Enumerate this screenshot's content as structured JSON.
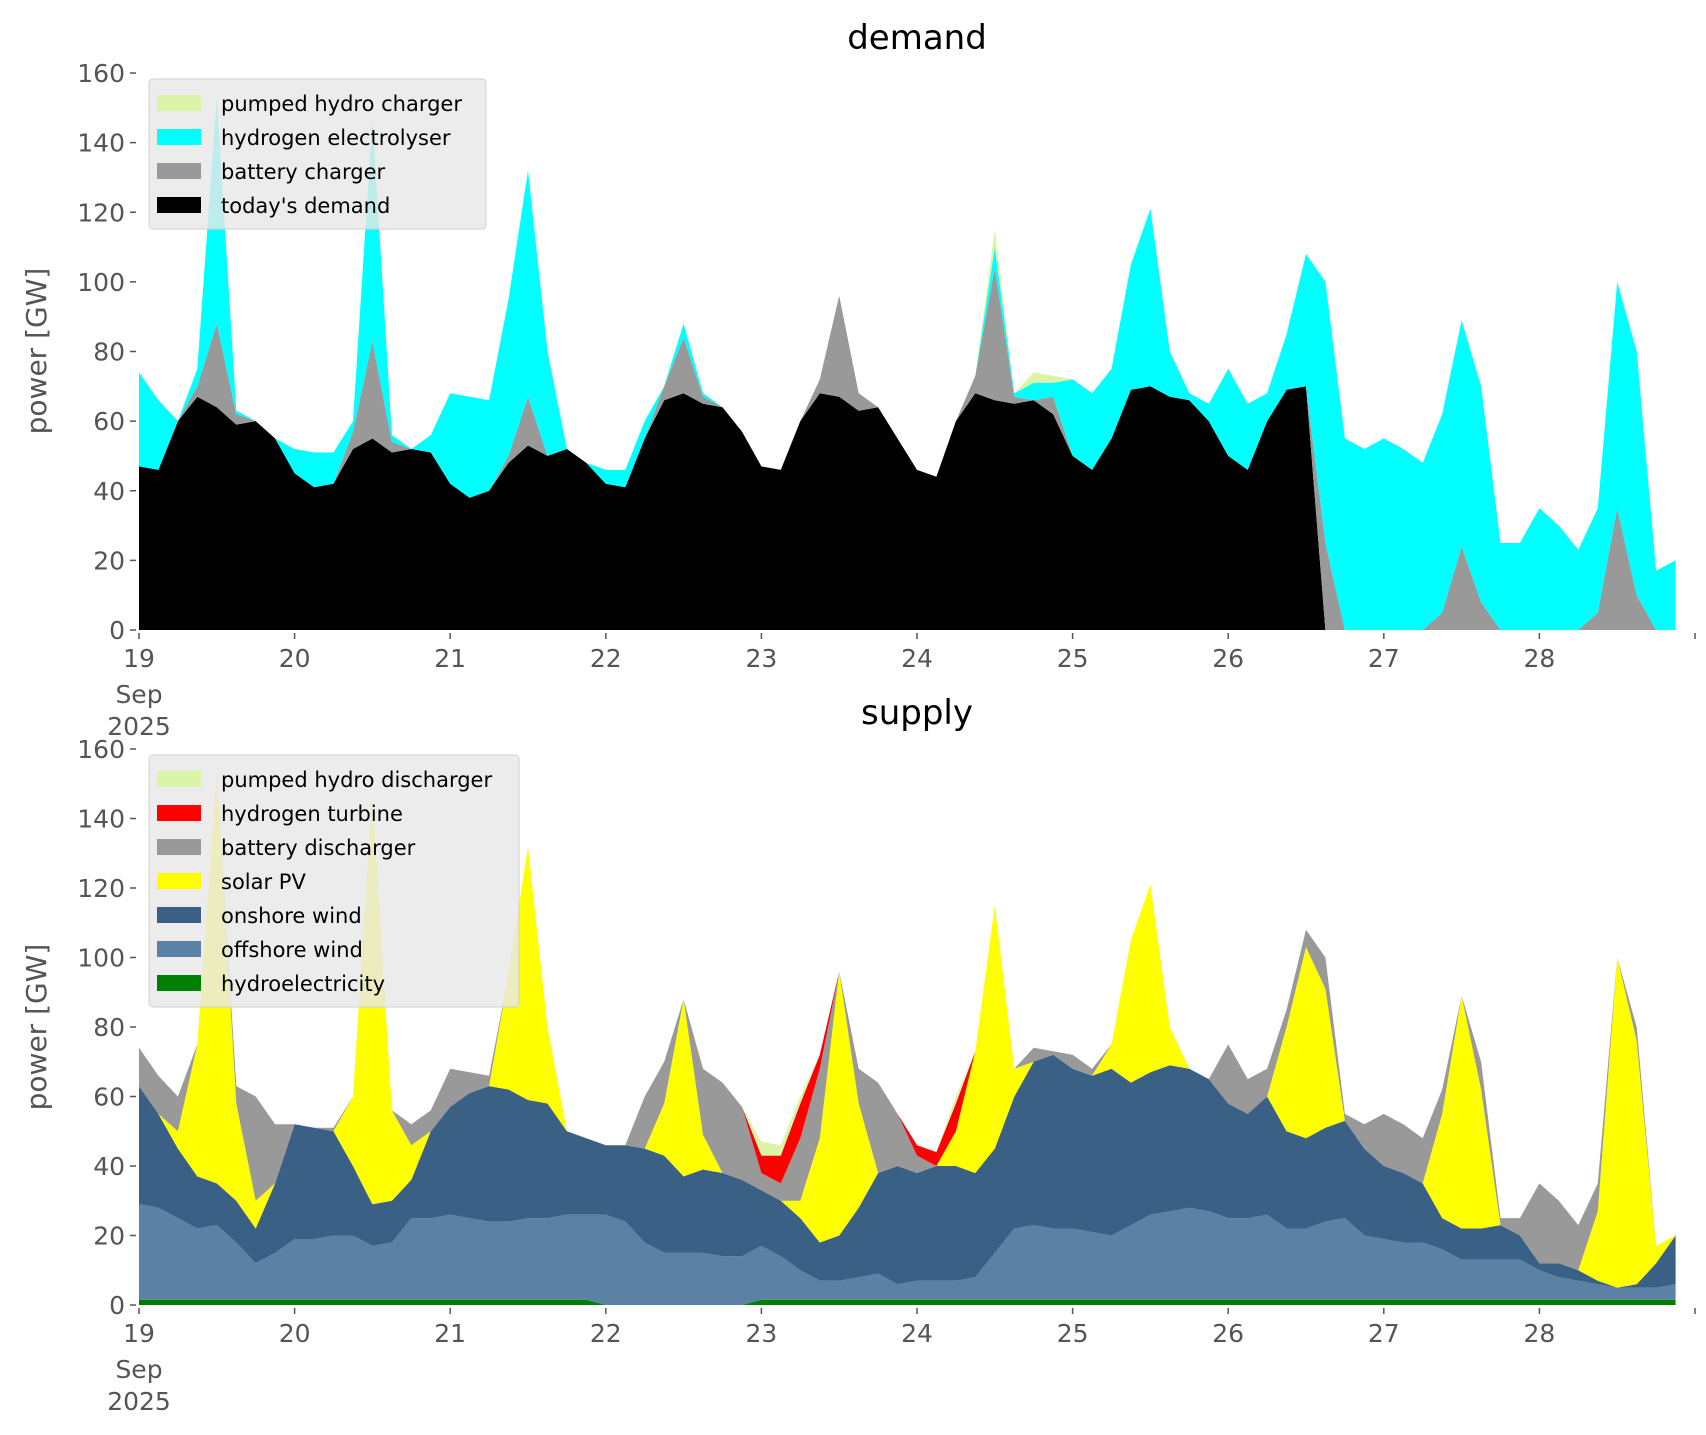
{
  "chart_data": [
    {
      "type": "area",
      "stacked": true,
      "title": "demand",
      "xlabel": "",
      "ylabel": "power [GW]",
      "ylim": [
        0,
        160
      ],
      "yticks": [
        0,
        20,
        40,
        60,
        80,
        100,
        120,
        140,
        160
      ],
      "x_start": "2025-09-19 00:00",
      "x_step_hours": 3,
      "xlim_days": [
        19,
        29
      ],
      "xtick_labels": [
        "19",
        "20",
        "21",
        "22",
        "23",
        "24",
        "25",
        "26",
        "27",
        "28"
      ],
      "xtick_first_sub": [
        "Sep",
        "2025"
      ],
      "legend_position": "top-left",
      "series": [
        {
          "name": "today's demand",
          "color": "#000000",
          "values": [
            47,
            46,
            60,
            67,
            64,
            59,
            60,
            55,
            45,
            41,
            42,
            52,
            55,
            51,
            52,
            51,
            42,
            38,
            40,
            48,
            53,
            50,
            52,
            48,
            42,
            41,
            55,
            66,
            68,
            65,
            64,
            57,
            47,
            46,
            60,
            68,
            67,
            63,
            64,
            55,
            46,
            44,
            60,
            68,
            66,
            65,
            66,
            62,
            50,
            46,
            55,
            69,
            70,
            67,
            66,
            60,
            50,
            46,
            60,
            69,
            70,
            0,
            0,
            0,
            0,
            0,
            0,
            0,
            0,
            0,
            0,
            0,
            0,
            0,
            0,
            0,
            0,
            0,
            0,
            0
          ]
        },
        {
          "name": "battery charger",
          "color": "#999999",
          "values": [
            0,
            0,
            0,
            3,
            24,
            3,
            0,
            0,
            0,
            0,
            0,
            5,
            28,
            3,
            0,
            0,
            0,
            0,
            0,
            2,
            14,
            0,
            0,
            0,
            0,
            0,
            0,
            4,
            16,
            2,
            0,
            0,
            0,
            0,
            0,
            4,
            29,
            5,
            0,
            0,
            0,
            0,
            0,
            5,
            38,
            2,
            0,
            5,
            0,
            0,
            0,
            0,
            0,
            0,
            0,
            0,
            0,
            0,
            0,
            0,
            0,
            25,
            0,
            0,
            0,
            0,
            0,
            5,
            24,
            8,
            0,
            0,
            0,
            0,
            0,
            5,
            35,
            10,
            0,
            0
          ]
        },
        {
          "name": "hydrogen electrolyser",
          "color": "#00ffff",
          "values": [
            27,
            20,
            0,
            5,
            65,
            1,
            0,
            0,
            7,
            10,
            9,
            3,
            64,
            2,
            0,
            5,
            26,
            29,
            26,
            45,
            65,
            30,
            0,
            0,
            4,
            5,
            5,
            0,
            4,
            1,
            0,
            0,
            0,
            0,
            0,
            0,
            0,
            0,
            0,
            0,
            0,
            0,
            0,
            0,
            6,
            1,
            5,
            4,
            22,
            22,
            20,
            36,
            51,
            13,
            2,
            5,
            25,
            19,
            8,
            16,
            38,
            75,
            55,
            52,
            55,
            52,
            48,
            57,
            65,
            62,
            25,
            25,
            35,
            30,
            23,
            30,
            65,
            70,
            17,
            20
          ]
        },
        {
          "name": "pumped hydro charger",
          "color": "#daf5a5",
          "values": [
            0,
            0,
            0,
            0,
            0,
            0,
            0,
            0,
            0,
            0,
            0,
            0,
            0,
            0,
            0,
            0,
            0,
            0,
            0,
            0,
            0,
            0,
            0,
            0,
            0,
            0,
            0,
            0,
            0,
            0,
            0,
            0,
            0,
            0,
            0,
            0,
            0,
            0,
            0,
            0,
            0,
            0,
            0,
            0,
            5,
            0,
            3,
            2,
            0,
            0,
            0,
            0,
            0,
            0,
            0,
            0,
            0,
            0,
            0,
            0,
            0,
            0,
            0,
            0,
            0,
            0,
            0,
            0,
            0,
            0,
            0,
            0,
            0,
            0,
            0,
            0,
            0,
            0,
            0,
            0
          ]
        }
      ]
    },
    {
      "type": "area",
      "stacked": true,
      "title": "supply",
      "xlabel": "",
      "ylabel": "power [GW]",
      "ylim": [
        0,
        160
      ],
      "yticks": [
        0,
        20,
        40,
        60,
        80,
        100,
        120,
        140,
        160
      ],
      "x_start": "2025-09-19 00:00",
      "x_step_hours": 3,
      "xlim_days": [
        19,
        29
      ],
      "xtick_labels": [
        "19",
        "20",
        "21",
        "22",
        "23",
        "24",
        "25",
        "26",
        "27",
        "28"
      ],
      "xtick_first_sub": [
        "Sep",
        "2025"
      ],
      "legend_position": "top-left",
      "series": [
        {
          "name": "hydroelectricity",
          "color": "#008000",
          "values": [
            1.5,
            1.5,
            1.5,
            1.5,
            1.5,
            1.5,
            1.5,
            1.5,
            1.5,
            1.5,
            1.5,
            1.5,
            1.5,
            1.5,
            1.5,
            1.5,
            1.5,
            1.5,
            1.5,
            1.5,
            1.5,
            1.5,
            1.5,
            1.5,
            0,
            0,
            0,
            0,
            0,
            0,
            0,
            0,
            1.5,
            1.5,
            1.5,
            1.5,
            1.5,
            1.5,
            1.5,
            1.5,
            1.5,
            1.5,
            1.5,
            1.5,
            1.5,
            1.5,
            1.5,
            1.5,
            1.5,
            1.5,
            1.5,
            1.5,
            1.5,
            1.5,
            1.5,
            1.5,
            1.5,
            1.5,
            1.5,
            1.5,
            1.5,
            1.5,
            1.5,
            1.5,
            1.5,
            1.5,
            1.5,
            1.5,
            1.5,
            1.5,
            1.5,
            1.5,
            1.5,
            1.5,
            1.5,
            1.5,
            1.5,
            1.5,
            1.5,
            1.5
          ]
        },
        {
          "name": "offshore wind",
          "color": "#5b82a4",
          "values": [
            27.5,
            26.5,
            23.5,
            20.5,
            21.5,
            16.5,
            10.5,
            13.5,
            17.5,
            17.5,
            18.5,
            18.5,
            15.5,
            16.5,
            23.5,
            23.5,
            24.5,
            23.5,
            22.5,
            22.5,
            23.5,
            23.5,
            24.5,
            24.5,
            26,
            24,
            18,
            15,
            15,
            15,
            14,
            14,
            15.5,
            12.5,
            8.5,
            5.5,
            5.5,
            6.5,
            7.5,
            4.5,
            5.5,
            5.5,
            5.5,
            6.5,
            13.5,
            20.5,
            21.5,
            20.5,
            20.5,
            19.5,
            18.5,
            21.5,
            24.5,
            25.5,
            26.5,
            25.5,
            23.5,
            23.5,
            24.5,
            20.5,
            20.5,
            22.5,
            23.5,
            18.5,
            17.5,
            16.5,
            16.5,
            14.5,
            11.5,
            11.5,
            11.5,
            11.5,
            8.5,
            6.5,
            5.5,
            4.5,
            3.5,
            3.5,
            3.5,
            4.5
          ]
        },
        {
          "name": "onshore wind",
          "color": "#3a6185",
          "values": [
            34,
            27,
            20,
            15,
            12,
            12,
            10,
            20,
            33,
            32,
            30,
            20,
            12,
            12,
            11,
            25,
            31,
            36,
            39,
            38,
            34,
            33,
            24,
            22,
            20,
            22,
            27,
            28,
            22,
            24,
            24,
            22,
            16,
            16,
            15,
            11,
            13,
            20,
            29,
            34,
            31,
            33,
            33,
            30,
            30,
            38,
            47,
            50,
            46,
            45,
            48,
            41,
            41,
            42,
            40,
            38,
            33,
            30,
            34,
            28,
            26,
            27,
            28,
            25,
            21,
            20,
            17,
            9,
            9,
            9,
            10,
            7,
            2,
            4,
            3,
            1,
            0,
            1,
            7,
            14
          ]
        },
        {
          "name": "solar PV",
          "color": "#ffff00",
          "values": [
            0,
            0,
            5,
            38,
            118,
            28,
            8,
            0,
            0,
            0,
            0,
            20,
            118,
            26,
            10,
            0,
            0,
            0,
            0,
            33,
            73,
            22,
            0,
            0,
            0,
            0,
            0,
            15,
            51,
            10,
            0,
            0,
            0,
            0,
            5,
            30,
            76,
            30,
            0,
            0,
            0,
            0,
            10,
            35,
            70,
            8,
            0,
            0,
            0,
            0,
            7,
            41,
            54,
            11,
            0,
            0,
            0,
            0,
            0,
            30,
            55,
            40,
            0,
            0,
            0,
            0,
            0,
            30,
            67,
            40,
            0,
            0,
            0,
            0,
            0,
            20,
            95,
            70,
            5,
            0
          ]
        },
        {
          "name": "battery discharger",
          "color": "#999999",
          "values": [
            11,
            11,
            10,
            0,
            0,
            5,
            30,
            17,
            0,
            0,
            1,
            0,
            0,
            0,
            6,
            6,
            11,
            6,
            3,
            0,
            0,
            0,
            0,
            0,
            0,
            0,
            15,
            12,
            0,
            19,
            26,
            21,
            5,
            5,
            18,
            20,
            0,
            10,
            26,
            15,
            5,
            0,
            0,
            0,
            0,
            0,
            4,
            1,
            4,
            2,
            0,
            0,
            0,
            0,
            0,
            0,
            17,
            10,
            8,
            5,
            5,
            9,
            2,
            7,
            15,
            14,
            13,
            7,
            0,
            8,
            2,
            5,
            23,
            18,
            13,
            8,
            0,
            4,
            0,
            0
          ]
        },
        {
          "name": "hydrogen turbine",
          "color": "#ff0000",
          "values": [
            0,
            0,
            0,
            0,
            0,
            0,
            0,
            0,
            0,
            0,
            0,
            0,
            0,
            0,
            0,
            0,
            0,
            0,
            0,
            0,
            0,
            0,
            0,
            0,
            0,
            0,
            0,
            0,
            0,
            0,
            0,
            0,
            5,
            8,
            10,
            4,
            0,
            0,
            0,
            0,
            3,
            4,
            8,
            0,
            0,
            0,
            0,
            0,
            0,
            0,
            0,
            0,
            0,
            0,
            0,
            0,
            0,
            0,
            0,
            0,
            0,
            0,
            0,
            0,
            0,
            0,
            0,
            0,
            0,
            0,
            0,
            0,
            0,
            0,
            0,
            0,
            0,
            0,
            0,
            0
          ]
        },
        {
          "name": "pumped hydro discharger",
          "color": "#daf5a5",
          "values": [
            0,
            0,
            0,
            0,
            0,
            0,
            0,
            0,
            0,
            0,
            0,
            0,
            0,
            0,
            0,
            0,
            0,
            0,
            0,
            0,
            0,
            0,
            0,
            0,
            0,
            0,
            0,
            0,
            0,
            0,
            0,
            0,
            4,
            3,
            2,
            0,
            0,
            0,
            0,
            0,
            0,
            0,
            2,
            0,
            0,
            0,
            0,
            0,
            0,
            0,
            0,
            0,
            0,
            0,
            0,
            0,
            0,
            0,
            0,
            0,
            0,
            0,
            0,
            0,
            0,
            0,
            0,
            0,
            0,
            0,
            0,
            0,
            0,
            0,
            0,
            0,
            0,
            0,
            0,
            0
          ]
        }
      ]
    }
  ]
}
